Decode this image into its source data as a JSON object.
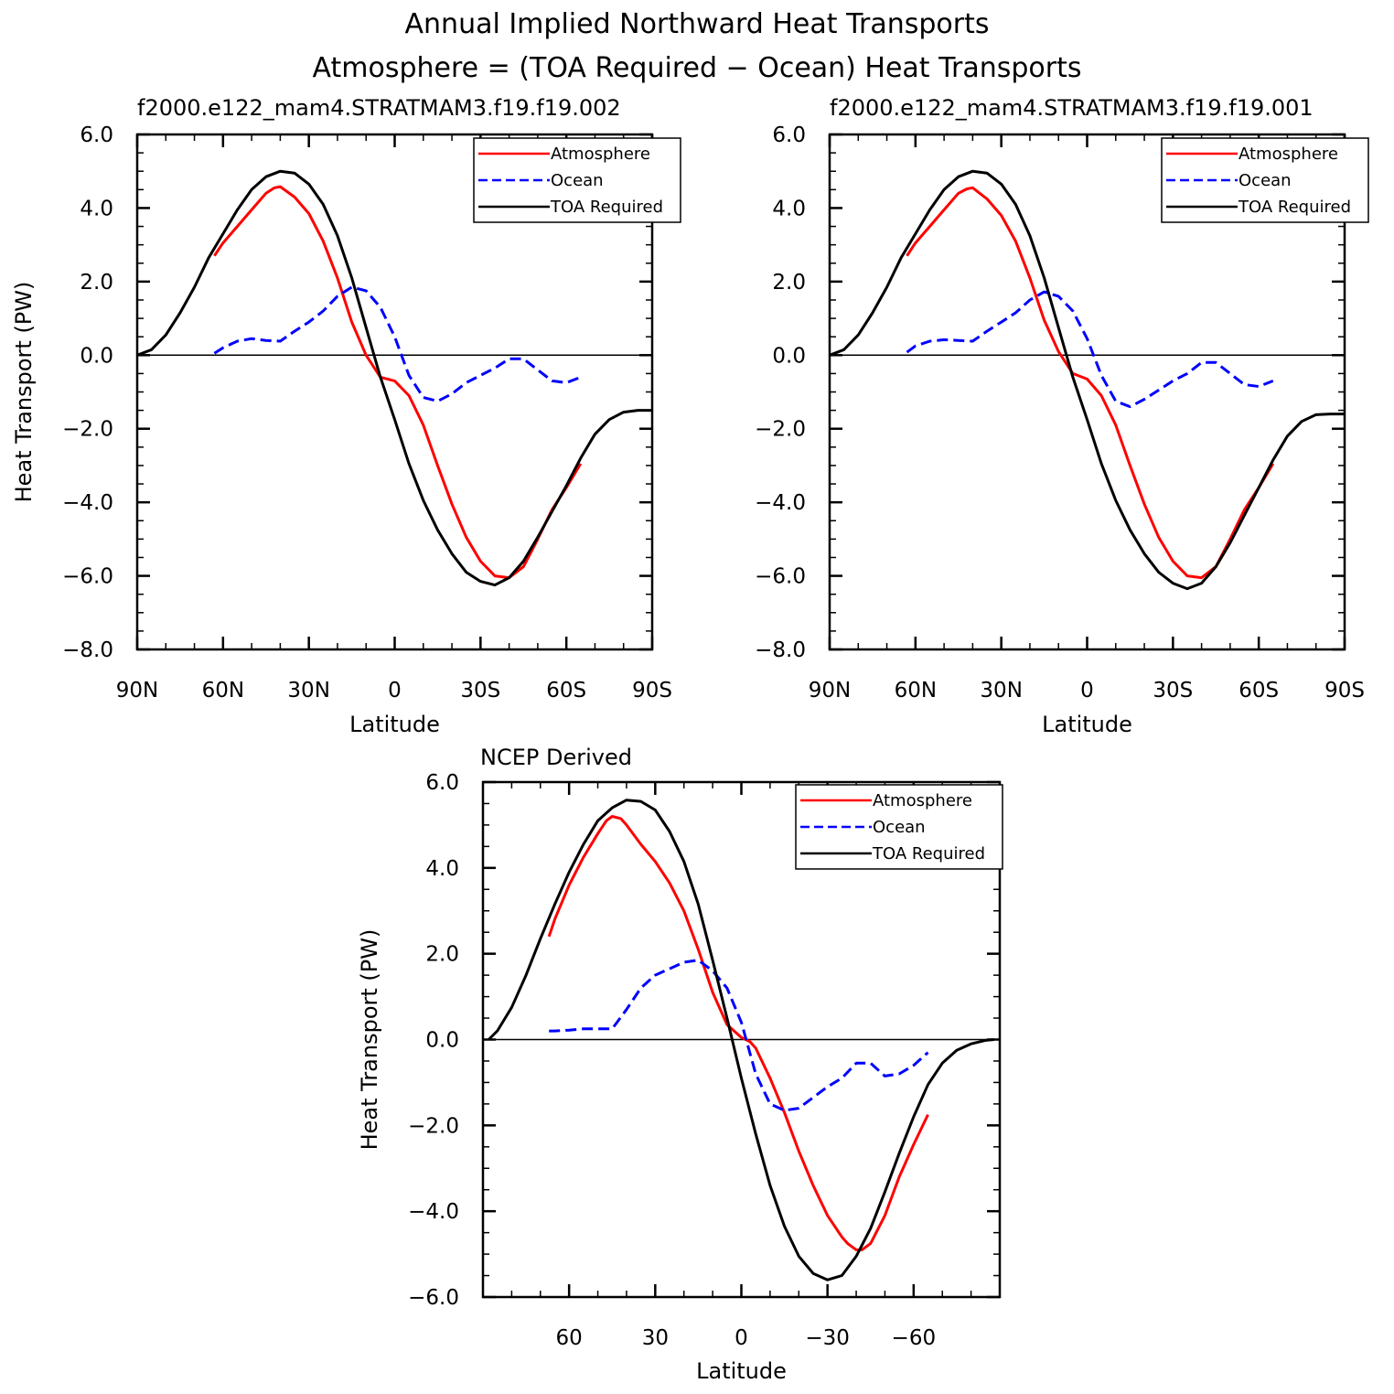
{
  "figure": {
    "title_line1": "Annual Implied Northward Heat Transports",
    "title_line2": "Atmosphere = (TOA Required − Ocean) Heat Transports"
  },
  "colors": {
    "atmosphere": "#ff0000",
    "ocean": "#0000ff",
    "toa": "#000000",
    "axes": "#000000"
  },
  "chart_data": [
    {
      "type": "line",
      "title": "f2000.e122_mam4.STRATMAM3.f19.f19.002",
      "xlabel": "Latitude",
      "ylabel": "Heat Transport (PW)",
      "xlim": [
        90,
        -90
      ],
      "ylim": [
        -8,
        6
      ],
      "xticks": [
        90,
        60,
        30,
        0,
        -30,
        -60,
        -90
      ],
      "xticklabels": [
        "90N",
        "60N",
        "30N",
        "0",
        "30S",
        "60S",
        "90S"
      ],
      "yticks": [
        6,
        4,
        2,
        0,
        -2,
        -4,
        -6,
        -8
      ],
      "yticklabels": [
        "6.0",
        "4.0",
        "2.0",
        "0.0",
        "−2.0",
        "−4.0",
        "−6.0",
        "−8.0"
      ],
      "legend_position": "top-right",
      "series": [
        {
          "name": "Atmosphere",
          "style": "solid",
          "x": [
            63,
            60,
            55,
            50,
            45,
            42,
            40,
            35,
            30,
            25,
            20,
            15,
            10,
            5,
            0,
            -5,
            -10,
            -15,
            -20,
            -25,
            -30,
            -35,
            -40,
            -45,
            -50,
            -55,
            -60,
            -65
          ],
          "y": [
            2.7,
            3.05,
            3.5,
            3.95,
            4.4,
            4.55,
            4.58,
            4.3,
            3.85,
            3.1,
            2.1,
            0.9,
            0.0,
            -0.6,
            -0.7,
            -1.1,
            -1.9,
            -3.0,
            -4.05,
            -4.95,
            -5.6,
            -6.0,
            -6.05,
            -5.75,
            -5.0,
            -4.2,
            -3.6,
            -2.95
          ]
        },
        {
          "name": "Ocean",
          "style": "dashed",
          "x": [
            63,
            60,
            55,
            50,
            45,
            40,
            35,
            30,
            25,
            20,
            15,
            10,
            5,
            0,
            -5,
            -10,
            -15,
            -20,
            -25,
            -30,
            -35,
            -40,
            -45,
            -50,
            -55,
            -60,
            -65
          ],
          "y": [
            0.05,
            0.2,
            0.38,
            0.45,
            0.4,
            0.38,
            0.65,
            0.9,
            1.2,
            1.6,
            1.85,
            1.75,
            1.3,
            0.5,
            -0.55,
            -1.15,
            -1.25,
            -1.05,
            -0.75,
            -0.55,
            -0.35,
            -0.1,
            -0.1,
            -0.4,
            -0.7,
            -0.75,
            -0.6
          ]
        },
        {
          "name": "TOA Required",
          "style": "solid",
          "x": [
            90,
            85,
            80,
            75,
            70,
            65,
            60,
            55,
            50,
            45,
            40,
            35,
            30,
            25,
            20,
            15,
            10,
            5,
            0,
            -5,
            -10,
            -15,
            -20,
            -25,
            -30,
            -35,
            -40,
            -45,
            -50,
            -55,
            -60,
            -65,
            -70,
            -75,
            -80,
            -85,
            -90
          ],
          "y": [
            0.0,
            0.15,
            0.55,
            1.15,
            1.85,
            2.65,
            3.3,
            3.95,
            4.5,
            4.85,
            5.0,
            4.95,
            4.65,
            4.1,
            3.25,
            2.1,
            0.75,
            -0.6,
            -1.75,
            -2.95,
            -3.95,
            -4.75,
            -5.4,
            -5.9,
            -6.15,
            -6.25,
            -6.05,
            -5.6,
            -4.95,
            -4.25,
            -3.55,
            -2.8,
            -2.15,
            -1.75,
            -1.55,
            -1.5,
            -1.5
          ]
        }
      ]
    },
    {
      "type": "line",
      "title": "f2000.e122_mam4.STRATMAM3.f19.f19.001",
      "xlabel": "Latitude",
      "ylabel": "",
      "xlim": [
        90,
        -90
      ],
      "ylim": [
        -8,
        6
      ],
      "xticks": [
        90,
        60,
        30,
        0,
        -30,
        -60,
        -90
      ],
      "xticklabels": [
        "90N",
        "60N",
        "30N",
        "0",
        "30S",
        "60S",
        "90S"
      ],
      "yticks": [
        6,
        4,
        2,
        0,
        -2,
        -4,
        -6,
        -8
      ],
      "yticklabels": [
        "6.0",
        "4.0",
        "2.0",
        "0.0",
        "−2.0",
        "−4.0",
        "−6.0",
        "−8.0"
      ],
      "legend_position": "top-right",
      "series": [
        {
          "name": "Atmosphere",
          "style": "solid",
          "x": [
            63,
            60,
            55,
            50,
            45,
            42,
            40,
            35,
            30,
            25,
            20,
            15,
            10,
            5,
            0,
            -5,
            -10,
            -15,
            -20,
            -25,
            -30,
            -35,
            -40,
            -45,
            -50,
            -55,
            -60,
            -65
          ],
          "y": [
            2.7,
            3.05,
            3.5,
            3.95,
            4.4,
            4.52,
            4.55,
            4.25,
            3.8,
            3.1,
            2.1,
            0.95,
            0.1,
            -0.5,
            -0.65,
            -1.1,
            -1.9,
            -3.0,
            -4.05,
            -4.95,
            -5.6,
            -6.0,
            -6.05,
            -5.75,
            -5.0,
            -4.2,
            -3.6,
            -2.95
          ]
        },
        {
          "name": "Ocean",
          "style": "dashed",
          "x": [
            63,
            60,
            55,
            50,
            45,
            40,
            35,
            30,
            25,
            20,
            15,
            10,
            5,
            0,
            -5,
            -10,
            -15,
            -20,
            -25,
            -30,
            -35,
            -40,
            -45,
            -50,
            -55,
            -60,
            -65
          ],
          "y": [
            0.08,
            0.25,
            0.38,
            0.42,
            0.4,
            0.38,
            0.65,
            0.9,
            1.15,
            1.5,
            1.72,
            1.6,
            1.2,
            0.45,
            -0.55,
            -1.25,
            -1.4,
            -1.2,
            -0.95,
            -0.7,
            -0.5,
            -0.2,
            -0.2,
            -0.5,
            -0.8,
            -0.85,
            -0.7
          ]
        },
        {
          "name": "TOA Required",
          "style": "solid",
          "x": [
            90,
            85,
            80,
            75,
            70,
            65,
            60,
            55,
            50,
            45,
            40,
            35,
            30,
            25,
            20,
            15,
            10,
            5,
            0,
            -5,
            -10,
            -15,
            -20,
            -25,
            -30,
            -35,
            -40,
            -45,
            -50,
            -55,
            -60,
            -65,
            -70,
            -75,
            -80,
            -85,
            -90
          ],
          "y": [
            0.0,
            0.15,
            0.55,
            1.15,
            1.85,
            2.65,
            3.3,
            3.95,
            4.5,
            4.85,
            5.0,
            4.95,
            4.65,
            4.1,
            3.25,
            2.1,
            0.75,
            -0.6,
            -1.75,
            -2.95,
            -3.95,
            -4.75,
            -5.4,
            -5.9,
            -6.2,
            -6.35,
            -6.2,
            -5.75,
            -5.1,
            -4.35,
            -3.6,
            -2.85,
            -2.2,
            -1.8,
            -1.62,
            -1.6,
            -1.6
          ]
        }
      ]
    },
    {
      "type": "line",
      "title": "NCEP Derived",
      "xlabel": "Latitude",
      "ylabel": "Heat Transport (PW)",
      "xlim": [
        90,
        -90
      ],
      "ylim": [
        -6,
        6
      ],
      "xticks": [
        60,
        30,
        0,
        -30,
        -60
      ],
      "xticklabels": [
        "60",
        "30",
        "0",
        "−30",
        "−60"
      ],
      "yticks": [
        6,
        4,
        2,
        0,
        -2,
        -4,
        -6
      ],
      "yticklabels": [
        "6.0",
        "4.0",
        "2.0",
        "0.0",
        "−2.0",
        "−4.0",
        "−6.0"
      ],
      "legend_position": "top-right",
      "series": [
        {
          "name": "Atmosphere",
          "style": "solid",
          "x": [
            67,
            65,
            60,
            55,
            50,
            47,
            45,
            42,
            40,
            35,
            30,
            25,
            20,
            15,
            10,
            5,
            0,
            -3,
            -5,
            -10,
            -15,
            -20,
            -25,
            -30,
            -35,
            -37,
            -40,
            -42,
            -45,
            -50,
            -55,
            -60,
            -65
          ],
          "y": [
            2.4,
            2.8,
            3.6,
            4.25,
            4.8,
            5.1,
            5.2,
            5.15,
            5.0,
            4.55,
            4.15,
            3.65,
            3.0,
            2.1,
            1.1,
            0.35,
            0.05,
            -0.05,
            -0.2,
            -0.9,
            -1.7,
            -2.6,
            -3.4,
            -4.1,
            -4.6,
            -4.75,
            -4.9,
            -4.9,
            -4.75,
            -4.1,
            -3.2,
            -2.45,
            -1.75
          ]
        },
        {
          "name": "Ocean",
          "style": "dashed",
          "x": [
            67,
            65,
            60,
            55,
            50,
            45,
            40,
            35,
            30,
            25,
            20,
            15,
            10,
            5,
            0,
            -5,
            -10,
            -15,
            -20,
            -25,
            -30,
            -35,
            -40,
            -45,
            -50,
            -55,
            -60,
            -65
          ],
          "y": [
            0.2,
            0.2,
            0.22,
            0.25,
            0.25,
            0.25,
            0.7,
            1.2,
            1.5,
            1.65,
            1.8,
            1.85,
            1.6,
            1.2,
            0.4,
            -0.8,
            -1.5,
            -1.65,
            -1.6,
            -1.35,
            -1.1,
            -0.9,
            -0.55,
            -0.55,
            -0.85,
            -0.8,
            -0.6,
            -0.3
          ]
        },
        {
          "name": "TOA Required",
          "style": "solid",
          "x": [
            88,
            85,
            80,
            75,
            70,
            65,
            60,
            55,
            50,
            45,
            40,
            35,
            30,
            25,
            20,
            15,
            10,
            5,
            0,
            -5,
            -10,
            -15,
            -20,
            -25,
            -30,
            -35,
            -40,
            -45,
            -50,
            -55,
            -60,
            -65,
            -70,
            -75,
            -80,
            -85,
            -88
          ],
          "y": [
            0.0,
            0.2,
            0.75,
            1.5,
            2.35,
            3.15,
            3.9,
            4.55,
            5.1,
            5.4,
            5.58,
            5.55,
            5.35,
            4.85,
            4.15,
            3.15,
            1.85,
            0.5,
            -0.9,
            -2.2,
            -3.4,
            -4.35,
            -5.05,
            -5.45,
            -5.6,
            -5.5,
            -5.05,
            -4.4,
            -3.55,
            -2.65,
            -1.8,
            -1.05,
            -0.55,
            -0.25,
            -0.1,
            -0.02,
            0.0
          ]
        }
      ]
    }
  ]
}
